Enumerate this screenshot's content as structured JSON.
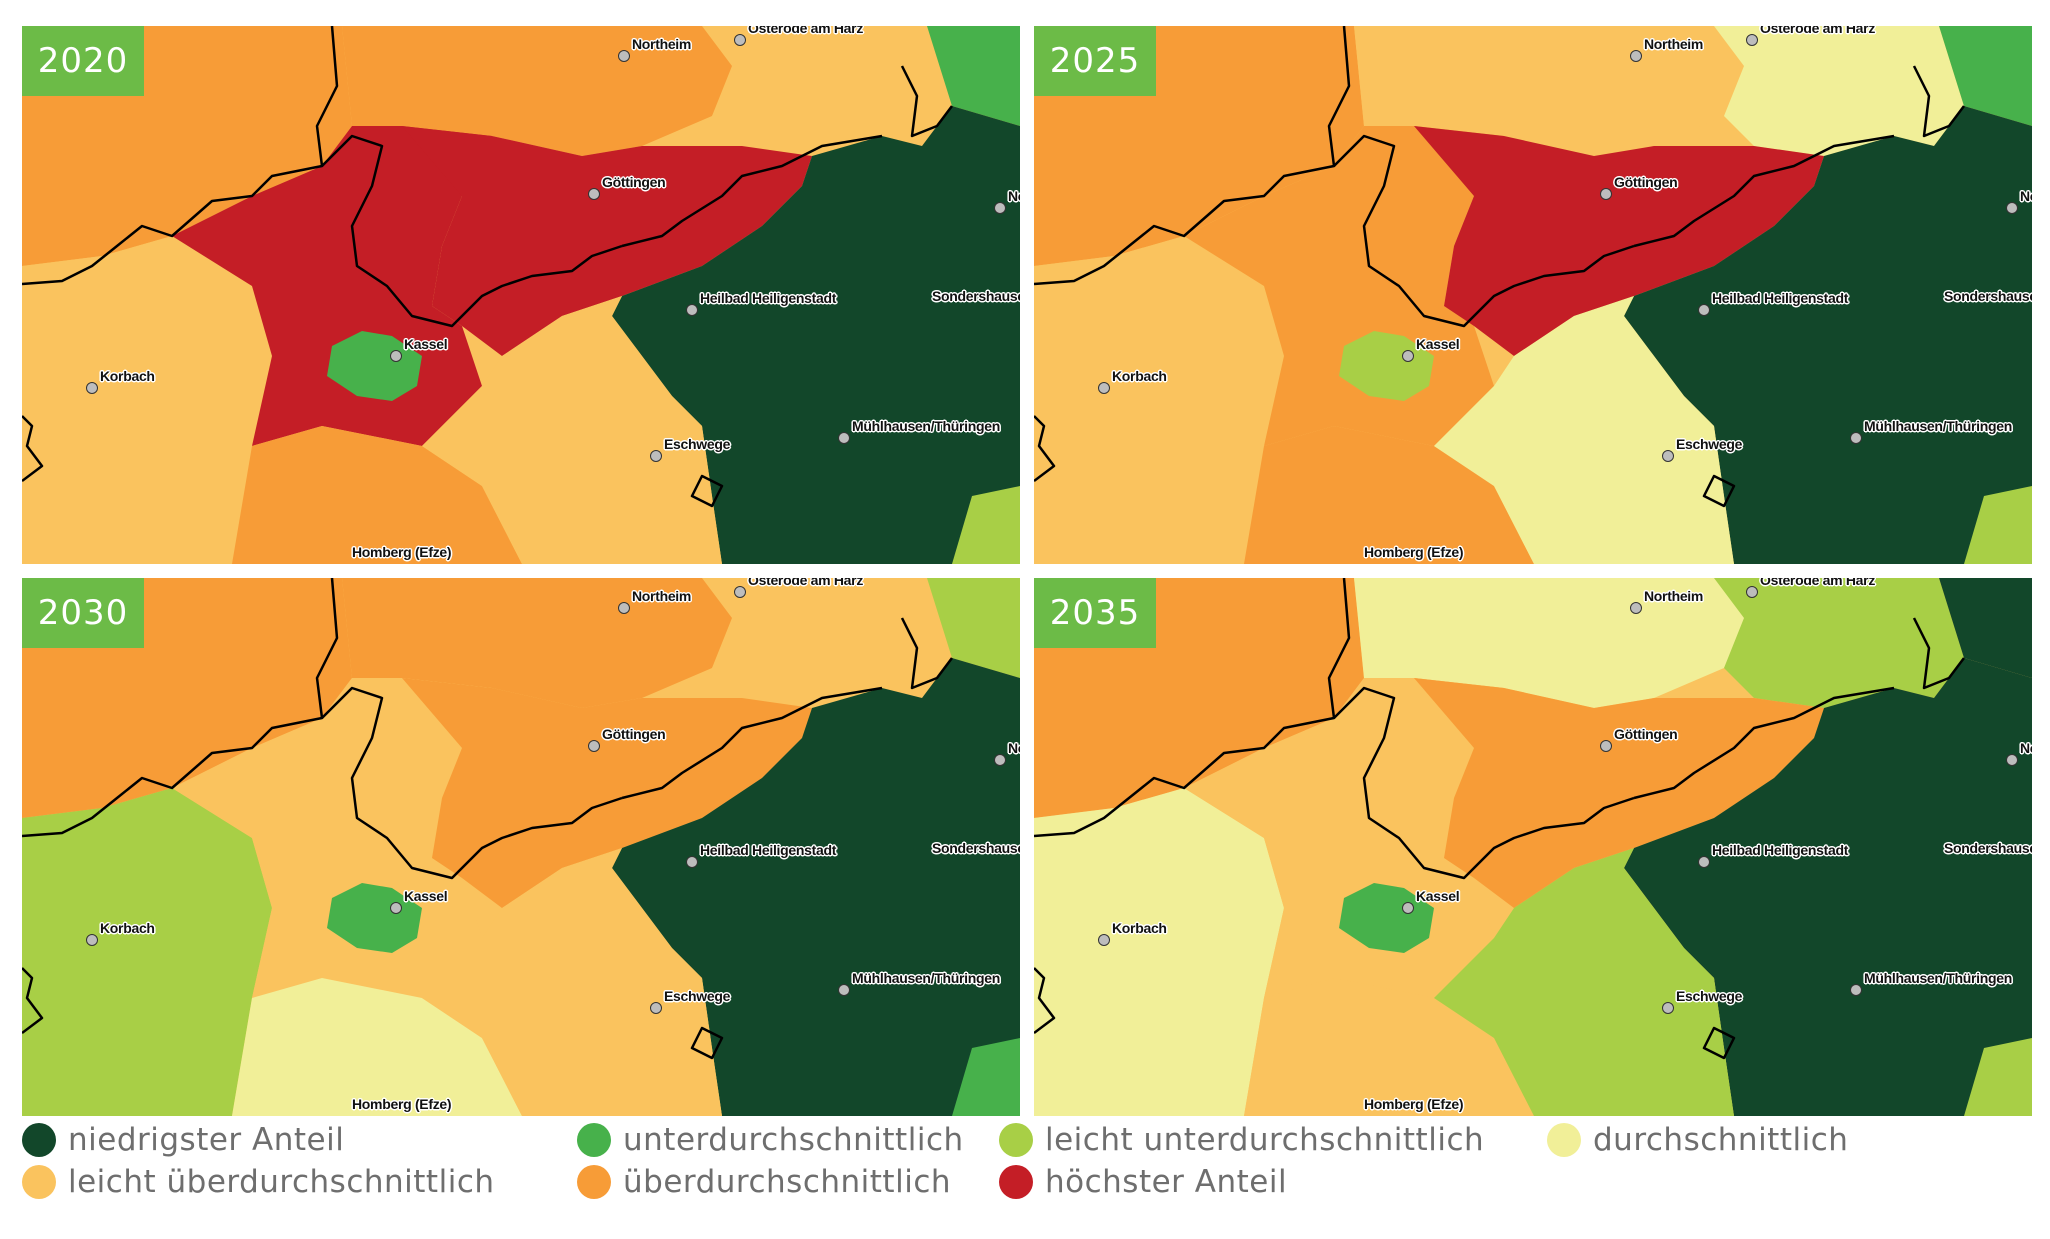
{
  "colors": {
    "niedrigster": "#12472a",
    "unter": "#47b14b",
    "leicht_unter": "#a8cf46",
    "durch": "#f1ef98",
    "leicht_ueber": "#fac35e",
    "ueber": "#f79c37",
    "hoechster": "#c41e26",
    "badge": "#6cbb47"
  },
  "panels": [
    {
      "year": "2020",
      "regions": {
        "nw": "ueber",
        "n": "ueber",
        "ne": "leicht_ueber",
        "fne": "unter",
        "w": "leicht_ueber",
        "c": "hoechster",
        "kassel": "unter",
        "goe": "hoechster",
        "e": "niedrigster",
        "sw": "ueber",
        "se": "leicht_ueber",
        "sep": "leicht_ueber",
        "fse": "leicht_unter"
      },
      "cities": [
        "Northeim",
        "Osterode am Harz",
        "Göttingen",
        "Nordhausen",
        "Heilbad Heiligenstadt",
        "Sondershausen",
        "Kassel",
        "Korbach",
        "Eschwege",
        "Mühlhausen/Thüringen",
        "Homberg (Efze)"
      ]
    },
    {
      "year": "2025",
      "regions": {
        "nw": "ueber",
        "n": "leicht_ueber",
        "ne": "durch",
        "fne": "unter",
        "w": "leicht_ueber",
        "c": "ueber",
        "kassel": "leicht_unter",
        "goe": "hoechster",
        "e": "niedrigster",
        "sw": "ueber",
        "se": "durch",
        "sep": "leicht_ueber",
        "fse": "leicht_unter"
      },
      "cities": [
        "Northeim",
        "Osterode am Harz",
        "Göttingen",
        "Nordhausen",
        "Heilbad Heiligenstadt",
        "Sondershausen",
        "Kassel",
        "Korbach",
        "Eschwege",
        "Mühlhausen/Thüringen",
        "Homberg (Efze)"
      ]
    },
    {
      "year": "2030",
      "regions": {
        "nw": "ueber",
        "n": "ueber",
        "ne": "leicht_ueber",
        "fne": "leicht_unter",
        "w": "leicht_unter",
        "c": "leicht_ueber",
        "kassel": "unter",
        "goe": "ueber",
        "e": "niedrigster",
        "sw": "durch",
        "se": "leicht_ueber",
        "sep": "unter",
        "fse": "unter"
      },
      "cities": [
        "Northeim",
        "Osterode am Harz",
        "Göttingen",
        "Nordhausen",
        "Heilbad Heiligenstadt",
        "Sondershausen",
        "Kassel",
        "Korbach",
        "Eschwege",
        "Mühlhausen/Thüringen",
        "Homberg (Efze)"
      ]
    },
    {
      "year": "2035",
      "regions": {
        "nw": "ueber",
        "n": "durch",
        "ne": "leicht_unter",
        "fne": "niedrigster",
        "w": "durch",
        "c": "leicht_ueber",
        "kassel": "unter",
        "goe": "ueber",
        "e": "niedrigster",
        "sw": "leicht_ueber",
        "se": "leicht_unter",
        "sep": "niedrigster",
        "fse": "leicht_unter"
      },
      "cities": [
        "Northeim",
        "Osterode am Harz",
        "Göttingen",
        "Nordhausen",
        "Heilbad Heiligenstadt",
        "Sondershausen",
        "Kassel",
        "Korbach",
        "Eschwege",
        "Mühlhausen/Thüringen",
        "Homberg (Efze)"
      ]
    }
  ],
  "legend": [
    {
      "key": "niedrigster",
      "label": "niedrigster Anteil"
    },
    {
      "key": "unter",
      "label": "unterdurchschnittlich"
    },
    {
      "key": "leicht_unter",
      "label": "leicht unterdurchschnittlich"
    },
    {
      "key": "durch",
      "label": "durchschnittlich"
    },
    {
      "key": "leicht_ueber",
      "label": "leicht überdurchschnittlich"
    },
    {
      "key": "ueber",
      "label": "überdurchschnittlich"
    },
    {
      "key": "hoechster",
      "label": "höchster Anteil"
    }
  ]
}
